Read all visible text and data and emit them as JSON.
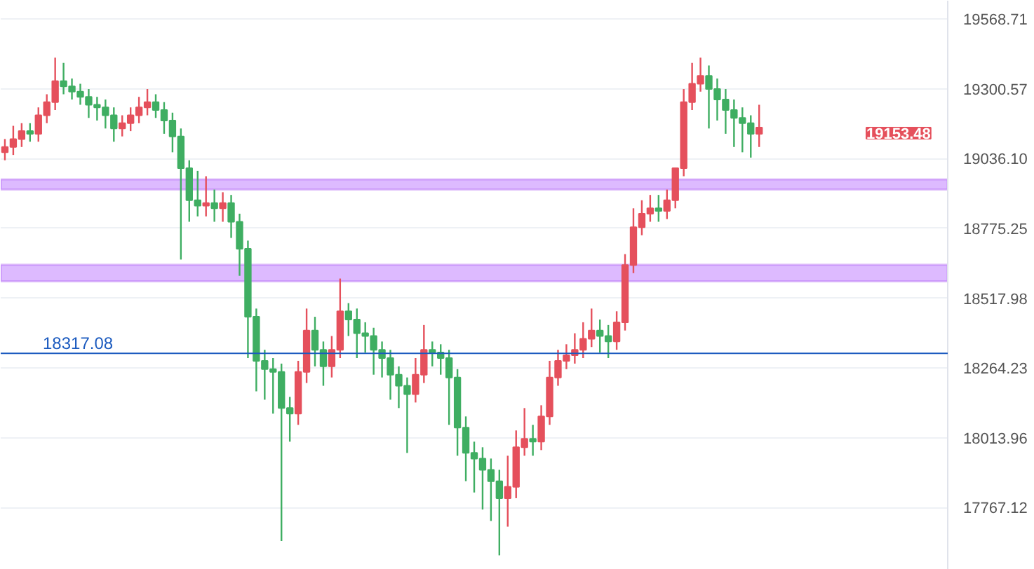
{
  "chart_data": {
    "type": "candlestick",
    "log": true,
    "grid": "y",
    "categories": [
      null,
      null,
      null,
      null,
      null,
      null,
      null,
      null,
      null,
      null,
      null,
      null,
      null,
      null,
      null,
      null,
      null,
      null,
      null,
      null,
      null,
      null,
      null,
      null,
      null,
      null,
      null,
      null,
      null,
      null,
      null,
      null,
      null,
      null,
      null,
      null,
      null,
      null,
      null,
      null,
      null,
      null,
      null,
      null,
      null,
      null,
      null,
      null,
      null,
      null,
      null,
      null,
      null,
      null,
      null,
      null,
      null,
      null,
      null,
      null,
      null,
      null,
      null,
      null,
      null,
      null,
      null,
      null,
      null,
      null,
      null,
      null,
      null,
      null,
      null,
      null,
      null,
      null,
      null,
      null,
      null,
      null,
      null,
      null,
      null,
      null,
      null,
      null,
      null,
      null,
      null,
      null,
      null,
      null,
      null,
      null,
      null,
      null,
      null,
      null,
      null,
      null,
      null,
      null,
      null,
      null,
      null,
      null,
      null,
      null,
      null,
      null,
      null
    ],
    "ohlc": [
      [
        19060,
        19110,
        19030,
        19080
      ],
      [
        19080,
        19160,
        19050,
        19110
      ],
      [
        19110,
        19170,
        19080,
        19140
      ],
      [
        19140,
        19170,
        19100,
        19130
      ],
      [
        19130,
        19230,
        19100,
        19200
      ],
      [
        19200,
        19280,
        19170,
        19250
      ],
      [
        19250,
        19420,
        19220,
        19330
      ],
      [
        19330,
        19400,
        19280,
        19310
      ],
      [
        19310,
        19340,
        19260,
        19290
      ],
      [
        19290,
        19320,
        19240,
        19270
      ],
      [
        19270,
        19300,
        19190,
        19240
      ],
      [
        19240,
        19270,
        19180,
        19230
      ],
      [
        19230,
        19260,
        19150,
        19200
      ],
      [
        19200,
        19230,
        19100,
        19150
      ],
      [
        19150,
        19200,
        19120,
        19170
      ],
      [
        19170,
        19230,
        19140,
        19200
      ],
      [
        19200,
        19270,
        19170,
        19230
      ],
      [
        19230,
        19300,
        19200,
        19250
      ],
      [
        19250,
        19280,
        19190,
        19220
      ],
      [
        19220,
        19250,
        19130,
        19180
      ],
      [
        19180,
        19210,
        19060,
        19120
      ],
      [
        19120,
        19150,
        18660,
        19000
      ],
      [
        19000,
        19030,
        18800,
        18880
      ],
      [
        18880,
        18990,
        18820,
        18860
      ],
      [
        18860,
        18970,
        18820,
        18870
      ],
      [
        18870,
        18920,
        18800,
        18850
      ],
      [
        18850,
        18910,
        18800,
        18870
      ],
      [
        18870,
        18900,
        18740,
        18800
      ],
      [
        18800,
        18830,
        18600,
        18700
      ],
      [
        18700,
        18730,
        18300,
        18450
      ],
      [
        18450,
        18480,
        18180,
        18290
      ],
      [
        18290,
        18330,
        18150,
        18260
      ],
      [
        18260,
        18300,
        18100,
        18250
      ],
      [
        18250,
        18280,
        17650,
        18120
      ],
      [
        18120,
        18160,
        18000,
        18100
      ],
      [
        18100,
        18290,
        18060,
        18250
      ],
      [
        18250,
        18480,
        18210,
        18400
      ],
      [
        18400,
        18450,
        18270,
        18330
      ],
      [
        18330,
        18360,
        18200,
        18270
      ],
      [
        18270,
        18380,
        18230,
        18330
      ],
      [
        18330,
        18590,
        18300,
        18470
      ],
      [
        18470,
        18500,
        18380,
        18440
      ],
      [
        18440,
        18480,
        18300,
        18390
      ],
      [
        18390,
        18430,
        18320,
        18380
      ],
      [
        18380,
        18410,
        18240,
        18330
      ],
      [
        18330,
        18360,
        18230,
        18300
      ],
      [
        18300,
        18330,
        18150,
        18240
      ],
      [
        18240,
        18270,
        18120,
        18200
      ],
      [
        18200,
        18230,
        17960,
        18170
      ],
      [
        18170,
        18300,
        18140,
        18240
      ],
      [
        18240,
        18420,
        18210,
        18330
      ],
      [
        18330,
        18360,
        18270,
        18320
      ],
      [
        18320,
        18350,
        18240,
        18300
      ],
      [
        18300,
        18330,
        18060,
        18230
      ],
      [
        18230,
        18260,
        17950,
        18050
      ],
      [
        18050,
        18090,
        17860,
        17960
      ],
      [
        17960,
        18000,
        17820,
        17940
      ],
      [
        17940,
        17980,
        17760,
        17900
      ],
      [
        17900,
        17940,
        17720,
        17860
      ],
      [
        17860,
        17900,
        17600,
        17800
      ],
      [
        17800,
        17950,
        17700,
        17840
      ],
      [
        17840,
        18040,
        17800,
        17980
      ],
      [
        17980,
        18120,
        17950,
        18010
      ],
      [
        18010,
        18060,
        17950,
        18000
      ],
      [
        18000,
        18130,
        17970,
        18090
      ],
      [
        18090,
        18290,
        18060,
        18230
      ],
      [
        18230,
        18330,
        18200,
        18290
      ],
      [
        18290,
        18350,
        18260,
        18310
      ],
      [
        18310,
        18390,
        18280,
        18330
      ],
      [
        18330,
        18430,
        18300,
        18370
      ],
      [
        18370,
        18480,
        18340,
        18400
      ],
      [
        18400,
        18440,
        18320,
        18380
      ],
      [
        18380,
        18420,
        18300,
        18360
      ],
      [
        18360,
        18470,
        18330,
        18430
      ],
      [
        18430,
        18680,
        18400,
        18640
      ],
      [
        18640,
        18850,
        18610,
        18780
      ],
      [
        18780,
        18880,
        18750,
        18830
      ],
      [
        18830,
        18900,
        18800,
        18850
      ],
      [
        18850,
        18900,
        18800,
        18840
      ],
      [
        18840,
        18920,
        18810,
        18880
      ],
      [
        18880,
        19000,
        18850,
        19000
      ],
      [
        19000,
        19300,
        18970,
        19250
      ],
      [
        19250,
        19400,
        19220,
        19320
      ],
      [
        19320,
        19420,
        19290,
        19350
      ],
      [
        19350,
        19390,
        19150,
        19300
      ],
      [
        19300,
        19340,
        19180,
        19260
      ],
      [
        19260,
        19300,
        19130,
        19220
      ],
      [
        19220,
        19260,
        19080,
        19190
      ],
      [
        19190,
        19230,
        19060,
        19170
      ],
      [
        19170,
        19200,
        19040,
        19130
      ],
      [
        19130,
        19240,
        19080,
        19153.48
      ],
      null,
      null,
      null,
      null,
      null,
      null,
      null,
      null,
      null,
      null,
      null,
      null,
      null,
      null,
      null,
      null,
      null,
      null,
      null,
      null,
      null,
      null
    ],
    "colors": [
      "#e5505c",
      "#e5505c",
      "#e5505c",
      "#3fae62",
      "#e5505c",
      "#e5505c",
      "#e5505c",
      "#3fae62",
      "#3fae62",
      "#3fae62",
      "#3fae62",
      "#3fae62",
      "#3fae62",
      "#3fae62",
      "#e5505c",
      "#e5505c",
      "#e5505c",
      "#e5505c",
      "#3fae62",
      "#3fae62",
      "#3fae62",
      "#3fae62",
      "#3fae62",
      "#3fae62",
      "#e5505c",
      "#3fae62",
      "#e5505c",
      "#3fae62",
      "#3fae62",
      "#3fae62",
      "#3fae62",
      "#3fae62",
      "#3fae62",
      "#3fae62",
      "#3fae62",
      "#e5505c",
      "#e5505c",
      "#3fae62",
      "#3fae62",
      "#e5505c",
      "#e5505c",
      "#3fae62",
      "#3fae62",
      "#3fae62",
      "#3fae62",
      "#3fae62",
      "#3fae62",
      "#3fae62",
      "#3fae62",
      "#e5505c",
      "#e5505c",
      "#3fae62",
      "#3fae62",
      "#3fae62",
      "#3fae62",
      "#3fae62",
      "#3fae62",
      "#3fae62",
      "#3fae62",
      "#3fae62",
      "#e5505c",
      "#e5505c",
      "#e5505c",
      "#3fae62",
      "#e5505c",
      "#e5505c",
      "#e5505c",
      "#e5505c",
      "#e5505c",
      "#e5505c",
      "#e5505c",
      "#3fae62",
      "#3fae62",
      "#e5505c",
      "#e5505c",
      "#e5505c",
      "#e5505c",
      "#e5505c",
      "#3fae62",
      "#e5505c",
      "#e5505c",
      "#e5505c",
      "#e5505c",
      "#e5505c",
      "#3fae62",
      "#3fae62",
      "#3fae62",
      "#3fae62",
      "#3fae62",
      "#3fae62",
      "#e5505c",
      null,
      null,
      null,
      null,
      null,
      null,
      null,
      null,
      null,
      null,
      null,
      null,
      null,
      null,
      null,
      null,
      null,
      null,
      null,
      null,
      null,
      null
    ],
    "ylim": [
      17550,
      19640
    ],
    "yticks": [
      {
        "value": 19568.71,
        "label": "19568.71"
      },
      {
        "value": 19300.57,
        "label": "19300.57"
      },
      {
        "value": 19036.1,
        "label": "19036.10"
      },
      {
        "value": 18775.25,
        "label": "18775.25"
      },
      {
        "value": 18517.98,
        "label": "18517.98"
      },
      {
        "value": 18264.23,
        "label": "18264.23"
      },
      {
        "value": 18013.96,
        "label": "18013.96"
      },
      {
        "value": 17767.12,
        "label": "17767.12"
      }
    ],
    "ref_lines": [
      {
        "axis": "y",
        "value": 18317.08,
        "label": "18317.08",
        "color": "#1c5bbf"
      }
    ],
    "bands": [
      {
        "axis": "y",
        "from": 18920,
        "to": 18958,
        "color": "#d9b3ff"
      },
      {
        "axis": "y",
        "from": 18580,
        "to": 18641,
        "color": "#d9b3ff"
      }
    ],
    "annotations": [
      "19153.48"
    ]
  }
}
